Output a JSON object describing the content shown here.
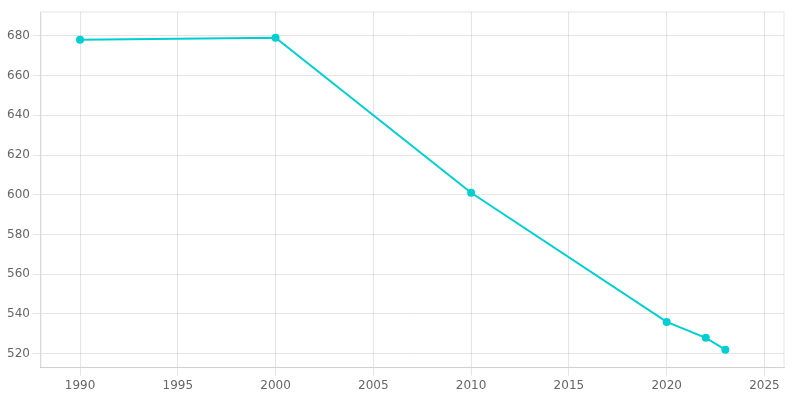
{
  "chart_data": {
    "type": "line",
    "x": [
      1990,
      2000,
      2010,
      2020,
      2022,
      2023
    ],
    "values": [
      678,
      679,
      601,
      536,
      528,
      522
    ],
    "color": "#00CED1",
    "marker": "circle",
    "xlim": [
      1988,
      2026
    ],
    "xticks": [
      1990,
      1995,
      2000,
      2005,
      2010,
      2015,
      2020,
      2025
    ],
    "ylim": [
      513,
      692
    ],
    "yticks": [
      520,
      540,
      560,
      580,
      600,
      620,
      640,
      660,
      680
    ],
    "grid": true
  }
}
